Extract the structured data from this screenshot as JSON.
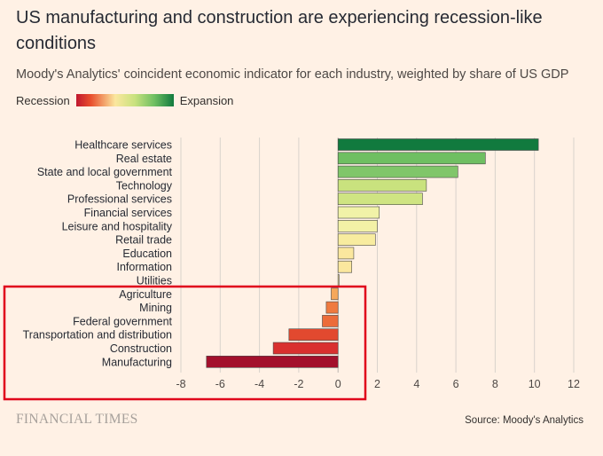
{
  "title": "US manufacturing and construction are experiencing recession-like conditions",
  "subtitle": "Moody's Analytics' coincident economic indicator for each industry, weighted by share of US GDP",
  "legend": {
    "left_label": "Recession",
    "right_label": "Expansion"
  },
  "footer": {
    "logo": "FINANCIAL TIMES",
    "source": "Source: Moody's Analytics"
  },
  "highlight_color": "#e0001b",
  "chart_data": {
    "type": "bar",
    "orientation": "horizontal",
    "categories": [
      "Healthcare services",
      "Real estate",
      "State and local government",
      "Technology",
      "Professional services",
      "Financial services",
      "Leisure and hospitality",
      "Retail trade",
      "Education",
      "Information",
      "Utilities",
      "Agriculture",
      "Mining",
      "Federal government",
      "Transportation and distribution",
      "Construction",
      "Manufacturing"
    ],
    "values": [
      10.2,
      7.5,
      6.1,
      4.5,
      4.3,
      2.1,
      2.0,
      1.9,
      0.8,
      0.7,
      0.05,
      -0.35,
      -0.6,
      -0.8,
      -2.5,
      -3.3,
      -6.7
    ],
    "colors": [
      "#117a3e",
      "#6fbf62",
      "#80c66a",
      "#c9e27e",
      "#cfe482",
      "#f1f2a8",
      "#f3f1a6",
      "#f8ec9f",
      "#fbe79e",
      "#fbe79e",
      "#fbe79e",
      "#f6a85a",
      "#ef7a3f",
      "#ec6c3a",
      "#e2492f",
      "#d9302f",
      "#a3102c"
    ],
    "xlim": [
      -8,
      12
    ],
    "xticks": [
      -8,
      -6,
      -4,
      -2,
      0,
      2,
      4,
      6,
      8,
      10,
      12
    ],
    "grid": true,
    "highlighted_categories": [
      "Agriculture",
      "Mining",
      "Federal government",
      "Transportation and distribution",
      "Construction",
      "Manufacturing"
    ]
  }
}
